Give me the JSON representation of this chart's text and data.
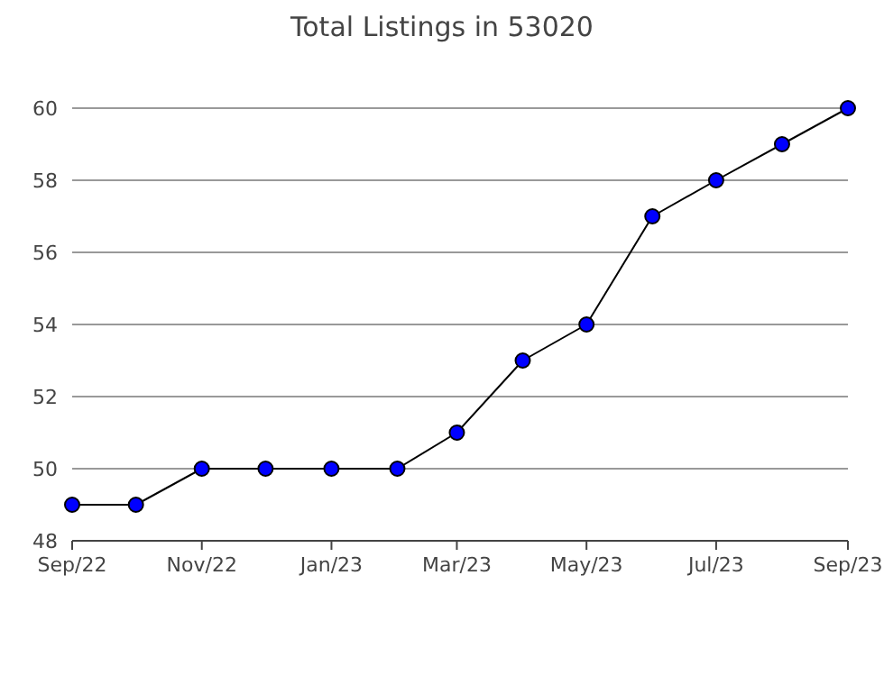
{
  "chart_data": {
    "type": "line",
    "title": "Total Listings in 53020",
    "x": [
      "2022-09",
      "2022-10",
      "2022-11",
      "2022-12",
      "2023-01",
      "2023-02",
      "2023-03",
      "2023-04",
      "2023-05",
      "2023-06",
      "2023-07",
      "2023-08",
      "2023-09"
    ],
    "series": [
      {
        "color": "#0000ff",
        "values": [
          49,
          49,
          50,
          50,
          50,
          50,
          51,
          53,
          54,
          57,
          58,
          59,
          60
        ]
      }
    ],
    "xlim": [
      "2022-09",
      "2023-09"
    ],
    "xticks": [
      {
        "value": "2022-09",
        "label": "Sep/22"
      },
      {
        "value": "2022-11",
        "label": "Nov/22"
      },
      {
        "value": "2023-01",
        "label": "Jan/23"
      },
      {
        "value": "2023-03",
        "label": "Mar/23"
      },
      {
        "value": "2023-05",
        "label": "May/23"
      },
      {
        "value": "2023-07",
        "label": "Jul/23"
      },
      {
        "value": "2023-09",
        "label": "Sep/23"
      }
    ],
    "ylim": [
      48,
      60
    ],
    "yticks": [
      48,
      50,
      52,
      54,
      56,
      58,
      60
    ],
    "grid": "y",
    "marker": "circle",
    "line_style": "solid"
  }
}
